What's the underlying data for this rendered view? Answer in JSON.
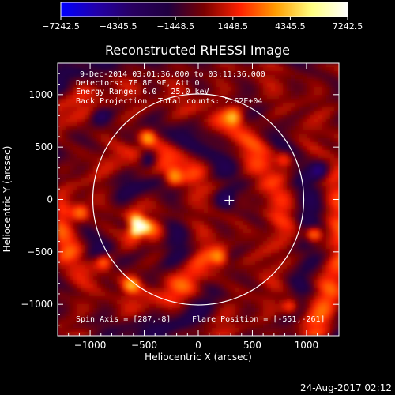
{
  "chart_data": {
    "type": "heatmap",
    "title": "Reconstructed RHESSI Image",
    "xlabel": "Heliocentric X (arcsec)",
    "ylabel": "Heliocentric Y (arcsec)",
    "xlim": [
      -1300,
      1300
    ],
    "ylim": [
      -1300,
      1300
    ],
    "xticks": [
      -1000,
      -500,
      0,
      500,
      1000
    ],
    "yticks": [
      -1000,
      -500,
      0,
      500,
      1000
    ],
    "xtick_labels": [
      "−1000",
      "−500",
      "0",
      "500",
      "1000"
    ],
    "ytick_labels": [
      "−1000",
      "−500",
      "0",
      "500",
      "1000"
    ],
    "colorbar": {
      "ticks": [
        -7242.5,
        -4345.5,
        -1448.5,
        1448.5,
        4345.5,
        7242.5
      ],
      "tick_labels": [
        "−7242.5",
        "−4345.5",
        "−1448.5",
        "1448.5",
        "4345.5",
        "7242.5"
      ],
      "stops": [
        "#0000ff",
        "#2200aa",
        "#280060",
        "#200040",
        "#7a0000",
        "#ff2000",
        "#ff9d00",
        "#ffff80",
        "#ffffff"
      ]
    },
    "annotations": [
      "9-Dec-2014 03:01:36.000 to 03:11:36.000",
      "Detectors: 7F 8F 9F, Att 0",
      "Energy Range: 6.0 - 25.0 keV",
      "Back Projection",
      "Total counts: 2.62E+04",
      "Spin Axis = [287,-8]",
      "Flare Position = [-551,-261]"
    ],
    "solar_disk": {
      "center": [
        0,
        0
      ],
      "radius": 975
    },
    "marker": {
      "shape": "plus",
      "x": 287,
      "y": -8
    },
    "hot_spots": [
      {
        "x": -551,
        "y": -261,
        "value": 7242.5
      },
      {
        "x": 1070,
        "y": -330,
        "value": 5200
      },
      {
        "x": -470,
        "y": 590,
        "value": 3600
      },
      {
        "x": -620,
        "y": -820,
        "value": 3400
      },
      {
        "x": 330,
        "y": 780,
        "value": 3200
      },
      {
        "x": 800,
        "y": 380,
        "value": 3000
      },
      {
        "x": 850,
        "y": -1020,
        "value": 3600
      },
      {
        "x": -870,
        "y": -600,
        "value": 3100
      },
      {
        "x": -1080,
        "y": -120,
        "value": 3000
      },
      {
        "x": 200,
        "y": -560,
        "value": 3300
      },
      {
        "x": -230,
        "y": 220,
        "value": 3500
      }
    ],
    "cold_spots": [
      {
        "x": -460,
        "y": 380,
        "value": -4345.5
      },
      {
        "x": 1120,
        "y": 280,
        "value": -3800
      },
      {
        "x": 250,
        "y": 0,
        "value": -3000
      },
      {
        "x": -900,
        "y": 800,
        "value": -2500
      }
    ]
  },
  "footer": {
    "timestamp": "24-Aug-2017 02:12"
  }
}
